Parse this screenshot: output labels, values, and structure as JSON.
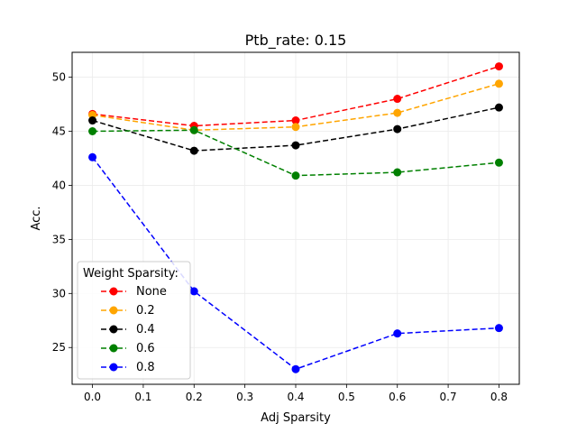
{
  "chart_data": {
    "type": "line",
    "title": "Ptb_rate: 0.15",
    "xlabel": "Adj Sparsity",
    "ylabel": "Acc.",
    "x": [
      0.0,
      0.2,
      0.4,
      0.6,
      0.8
    ],
    "xlim": [
      -0.04,
      0.84
    ],
    "ylim": [
      21.6,
      52.3
    ],
    "xticks": [
      "0.0",
      "0.1",
      "0.2",
      "0.3",
      "0.4",
      "0.5",
      "0.6",
      "0.7",
      "0.8"
    ],
    "yticks": [
      "25",
      "30",
      "35",
      "40",
      "45",
      "50"
    ],
    "grid": true,
    "legend": {
      "title": "Weight Sparsity:",
      "placement": "lower-left"
    },
    "series": [
      {
        "name": "None",
        "color": "#ff0000",
        "values": [
          46.6,
          45.5,
          46.0,
          48.0,
          51.0
        ]
      },
      {
        "name": "0.2",
        "color": "#ffa500",
        "values": [
          46.5,
          45.1,
          45.4,
          46.7,
          49.4
        ]
      },
      {
        "name": "0.4",
        "color": "#000000",
        "values": [
          46.0,
          43.2,
          43.7,
          45.2,
          47.2
        ]
      },
      {
        "name": "0.6",
        "color": "#008000",
        "values": [
          45.0,
          45.1,
          40.9,
          41.2,
          42.1
        ]
      },
      {
        "name": "0.8",
        "color": "#0000ff",
        "values": [
          42.6,
          30.2,
          23.0,
          26.3,
          26.8
        ]
      }
    ]
  }
}
